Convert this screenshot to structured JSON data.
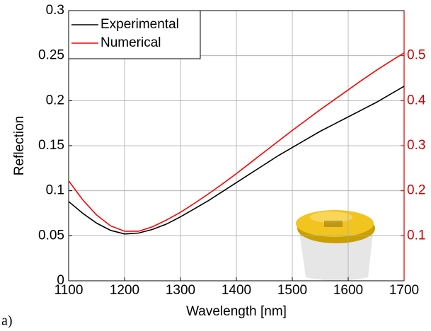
{
  "chart_data": {
    "type": "line",
    "xlabel": "Wavelength [nm]",
    "ylabel": "Reflection",
    "panel_label": "a)",
    "x": [
      1100,
      1125,
      1150,
      1175,
      1200,
      1225,
      1250,
      1275,
      1300,
      1325,
      1350,
      1375,
      1400,
      1425,
      1450,
      1475,
      1500,
      1525,
      1550,
      1575,
      1600,
      1625,
      1650,
      1675,
      1700
    ],
    "series": [
      {
        "name": "Experimental",
        "color": "#000000",
        "axis": "y",
        "values": [
          0.088,
          0.075,
          0.064,
          0.056,
          0.052,
          0.053,
          0.057,
          0.063,
          0.071,
          0.08,
          0.089,
          0.099,
          0.109,
          0.119,
          0.129,
          0.139,
          0.148,
          0.157,
          0.166,
          0.174,
          0.182,
          0.19,
          0.198,
          0.207,
          0.216
        ]
      },
      {
        "name": "Numerical",
        "color": "#ff0000",
        "axis": "y2",
        "values": [
          0.222,
          0.18,
          0.146,
          0.122,
          0.11,
          0.11,
          0.12,
          0.135,
          0.152,
          0.172,
          0.193,
          0.215,
          0.238,
          0.262,
          0.286,
          0.31,
          0.334,
          0.357,
          0.38,
          0.402,
          0.424,
          0.446,
          0.467,
          0.487,
          0.506
        ]
      }
    ],
    "xlim": [
      1100,
      1700
    ],
    "xticks": [
      1100,
      1200,
      1300,
      1400,
      1500,
      1600,
      1700
    ],
    "ylim": [
      0,
      0.3
    ],
    "yticks": [
      0,
      0.05,
      0.1,
      0.15,
      0.2,
      0.25,
      0.3
    ],
    "y2lim": [
      0,
      0.6
    ],
    "y2ticks": [
      0.1,
      0.2,
      0.3,
      0.4,
      0.5
    ],
    "y2color": "#cc0000",
    "grid": true,
    "legend": "upper-left"
  }
}
